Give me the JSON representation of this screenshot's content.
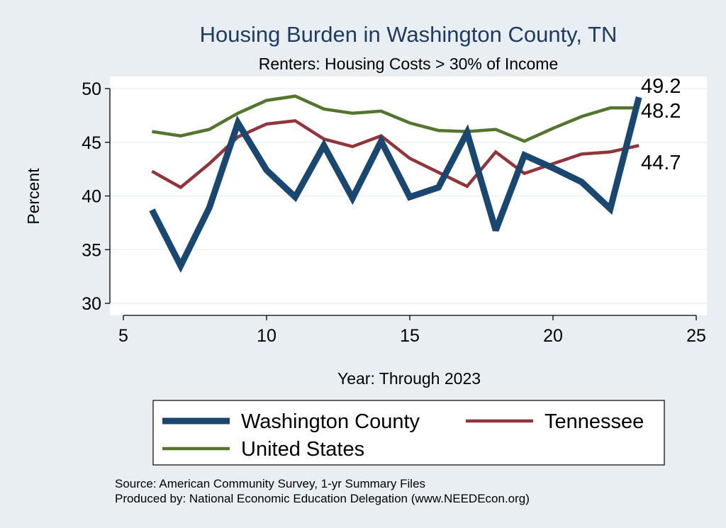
{
  "chart_data": {
    "type": "line",
    "title": "Housing Burden in Washington County, TN",
    "subtitle": "Renters: Housing Costs > 30% of Income",
    "xlabel": "Year: Through 2023",
    "ylabel": "Percent",
    "xlim": [
      5,
      25
    ],
    "ylim": [
      30,
      50
    ],
    "xticks": [
      5,
      10,
      15,
      20,
      25
    ],
    "yticks": [
      30,
      35,
      40,
      45,
      50
    ],
    "grid": true,
    "legend_position": "bottom",
    "series": [
      {
        "name": "Washington County",
        "color": "#1a476f",
        "x": [
          6,
          7,
          8,
          9,
          10,
          11,
          12,
          13,
          14,
          15,
          16,
          17,
          18,
          19,
          20,
          21,
          22,
          23
        ],
        "values": [
          38.7,
          33.5,
          38.9,
          46.8,
          42.4,
          39.9,
          44.7,
          39.8,
          45.1,
          39.9,
          40.8,
          45.9,
          36.8,
          43.8,
          42.6,
          41.3,
          38.8,
          49.2
        ],
        "end_label": "49.2"
      },
      {
        "name": "Tennessee",
        "color": "#90353b",
        "x": [
          6,
          7,
          8,
          9,
          10,
          11,
          12,
          13,
          14,
          15,
          16,
          17,
          18,
          19,
          20,
          21,
          22,
          23
        ],
        "values": [
          42.3,
          40.8,
          43.0,
          45.5,
          46.7,
          47.0,
          45.3,
          44.6,
          45.6,
          43.5,
          42.2,
          40.9,
          44.1,
          42.1,
          43.0,
          43.9,
          44.1,
          44.7
        ],
        "end_label": "44.7"
      },
      {
        "name": "United States",
        "color": "#55752f",
        "x": [
          6,
          7,
          8,
          9,
          10,
          11,
          12,
          13,
          14,
          15,
          16,
          17,
          18,
          19,
          20,
          21,
          22,
          23
        ],
        "values": [
          46.0,
          45.6,
          46.2,
          47.7,
          48.9,
          49.3,
          48.1,
          47.7,
          47.9,
          46.8,
          46.1,
          46.0,
          46.2,
          45.1,
          46.3,
          47.4,
          48.2,
          48.2
        ],
        "end_label": "48.2"
      }
    ],
    "legend": [
      {
        "label": "Washington County",
        "color": "#1a476f"
      },
      {
        "label": "Tennessee",
        "color": "#90353b"
      },
      {
        "label": "United States",
        "color": "#55752f"
      }
    ]
  },
  "notes": {
    "source": "Source: American Community Survey, 1-yr Summary Files",
    "produced_by": "Produced by: National Economic Education Delegation (www.NEEDEcon.org)"
  }
}
